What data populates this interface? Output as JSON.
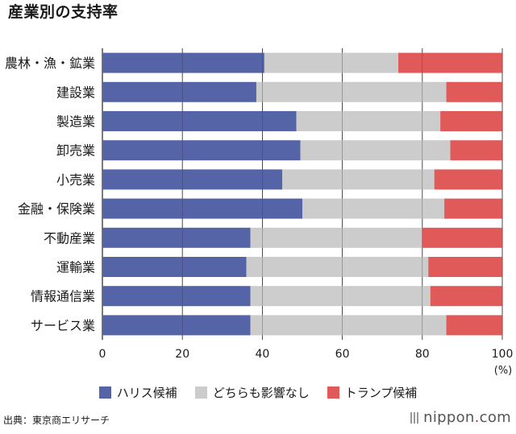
{
  "title": "産業別の支持率",
  "source": "出典：東京商エリサーチ",
  "logo": {
    "text": "nippon",
    "dot": ".",
    "suffix": "com"
  },
  "unit_label": "(%)",
  "colors": {
    "harris": "#5564a6",
    "neither": "#cccccc",
    "trump": "#e05a5a"
  },
  "chart_data": {
    "type": "bar",
    "orientation": "horizontal",
    "stacked": true,
    "title": "産業別の支持率",
    "xlim": [
      0,
      100
    ],
    "xticks": [
      0,
      20,
      40,
      60,
      80,
      100
    ],
    "xunit": "(%)",
    "categories": [
      "農林・漁・鉱業",
      "建設業",
      "製造業",
      "卸売業",
      "小売業",
      "金融・保険業",
      "不動産業",
      "運輸業",
      "情報通信業",
      "サービス業"
    ],
    "series": [
      {
        "name": "ハリス候補",
        "color": "#5564a6",
        "values": [
          40.5,
          38.5,
          48.5,
          49.5,
          45,
          50,
          37,
          36,
          37,
          37
        ]
      },
      {
        "name": "どちらも影響なし",
        "color": "#cccccc",
        "values": [
          33.5,
          47.5,
          36,
          37.5,
          38,
          35.5,
          43,
          45.5,
          45,
          49
        ]
      },
      {
        "name": "トランプ候補",
        "color": "#e05a5a",
        "values": [
          26,
          14,
          15.5,
          13,
          17,
          14.5,
          20,
          18.5,
          18,
          14
        ]
      }
    ],
    "legend_position": "bottom",
    "grid": true
  }
}
